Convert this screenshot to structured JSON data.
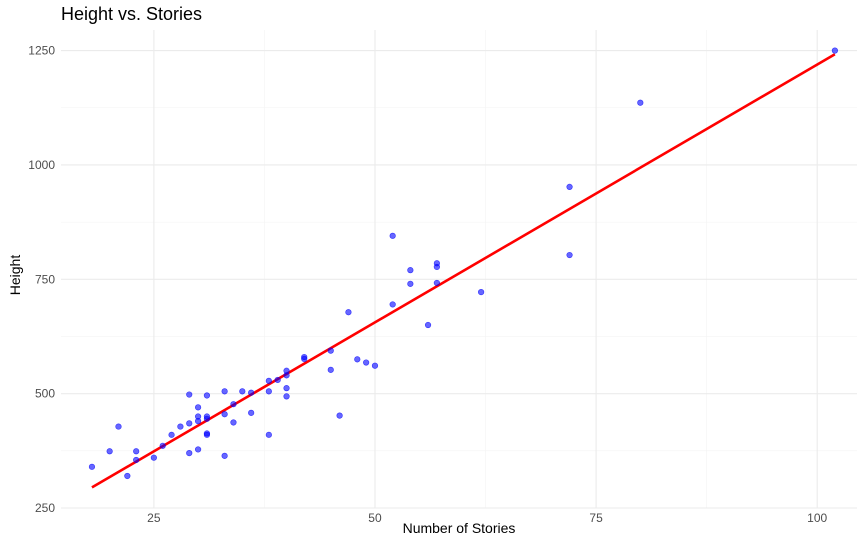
{
  "chart_data": {
    "type": "scatter",
    "title": "Height vs. Stories",
    "xlabel": "Number of Stories",
    "ylabel": "Height",
    "xlim": [
      14.5,
      104.5
    ],
    "ylim": [
      250,
      1295
    ],
    "x_ticks": [
      25,
      50,
      75,
      100
    ],
    "y_ticks": [
      250,
      500,
      750,
      1000,
      1250
    ],
    "grid": true,
    "legend": "none",
    "colors": {
      "points": "#0000ff",
      "fit_line": "#ff0000",
      "grid": "#ebebeb"
    },
    "points": [
      {
        "x": 18,
        "y": 340
      },
      {
        "x": 20,
        "y": 374
      },
      {
        "x": 21,
        "y": 428
      },
      {
        "x": 22,
        "y": 320
      },
      {
        "x": 23,
        "y": 355
      },
      {
        "x": 23,
        "y": 374
      },
      {
        "x": 25,
        "y": 360
      },
      {
        "x": 26,
        "y": 386
      },
      {
        "x": 27,
        "y": 410
      },
      {
        "x": 28,
        "y": 428
      },
      {
        "x": 29,
        "y": 370
      },
      {
        "x": 29,
        "y": 435
      },
      {
        "x": 29,
        "y": 498
      },
      {
        "x": 30,
        "y": 378
      },
      {
        "x": 30,
        "y": 440
      },
      {
        "x": 30,
        "y": 450
      },
      {
        "x": 30,
        "y": 470
      },
      {
        "x": 31,
        "y": 410
      },
      {
        "x": 31,
        "y": 413
      },
      {
        "x": 31,
        "y": 445
      },
      {
        "x": 31,
        "y": 450
      },
      {
        "x": 31,
        "y": 496
      },
      {
        "x": 33,
        "y": 364
      },
      {
        "x": 33,
        "y": 455
      },
      {
        "x": 33,
        "y": 505
      },
      {
        "x": 34,
        "y": 437
      },
      {
        "x": 34,
        "y": 477
      },
      {
        "x": 35,
        "y": 505
      },
      {
        "x": 36,
        "y": 458
      },
      {
        "x": 36,
        "y": 502
      },
      {
        "x": 38,
        "y": 410
      },
      {
        "x": 38,
        "y": 505
      },
      {
        "x": 38,
        "y": 528
      },
      {
        "x": 39,
        "y": 530
      },
      {
        "x": 40,
        "y": 494
      },
      {
        "x": 40,
        "y": 512
      },
      {
        "x": 40,
        "y": 540
      },
      {
        "x": 40,
        "y": 550
      },
      {
        "x": 42,
        "y": 576
      },
      {
        "x": 42,
        "y": 580
      },
      {
        "x": 45,
        "y": 552
      },
      {
        "x": 45,
        "y": 594
      },
      {
        "x": 46,
        "y": 452
      },
      {
        "x": 47,
        "y": 678
      },
      {
        "x": 48,
        "y": 575
      },
      {
        "x": 49,
        "y": 568
      },
      {
        "x": 50,
        "y": 561
      },
      {
        "x": 52,
        "y": 695
      },
      {
        "x": 52,
        "y": 845
      },
      {
        "x": 54,
        "y": 740
      },
      {
        "x": 54,
        "y": 770
      },
      {
        "x": 56,
        "y": 650
      },
      {
        "x": 57,
        "y": 742
      },
      {
        "x": 57,
        "y": 777
      },
      {
        "x": 57,
        "y": 785
      },
      {
        "x": 62,
        "y": 722
      },
      {
        "x": 72,
        "y": 803
      },
      {
        "x": 72,
        "y": 952
      },
      {
        "x": 80,
        "y": 1136
      },
      {
        "x": 102,
        "y": 1250
      }
    ],
    "fit_line": {
      "x": [
        18,
        102
      ],
      "y": [
        295,
        1242
      ]
    }
  }
}
